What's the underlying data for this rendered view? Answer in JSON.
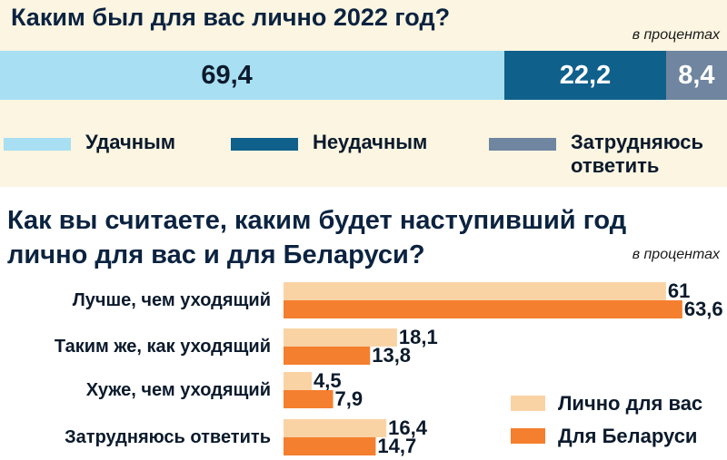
{
  "colors": {
    "background_top": "#fbf5e1",
    "successful": "#a8dff2",
    "unsuccessful": "#10608c",
    "hard_to_say": "#6f85a0",
    "personal": "#fad3a5",
    "belarus": "#f47f2f",
    "title": "#0b2340"
  },
  "section1": {
    "title": "Каким был для вас лично 2022 год?",
    "unit": "в процентах",
    "legend": [
      {
        "label": "Удачным",
        "color": "#a8dff2"
      },
      {
        "label": "Неудачным",
        "color": "#10608c"
      },
      {
        "label": "Затрудняюсь\nответить",
        "color": "#6f85a0"
      }
    ]
  },
  "section2": {
    "title": "Как вы считаете, каким будет наступивший год лично для вас и для Беларуси?",
    "unit": "в процентах"
  },
  "chart_data": [
    {
      "type": "bar",
      "stacked": true,
      "orientation": "horizontal",
      "title": "Каким был для вас лично 2022 год?",
      "series": [
        {
          "name": "Удачным",
          "values": [
            69.4
          ],
          "label": "69,4",
          "color": "#a8dff2"
        },
        {
          "name": "Неудачным",
          "values": [
            22.2
          ],
          "label": "22,2",
          "color": "#10608c"
        },
        {
          "name": "Затрудняюсь ответить",
          "values": [
            8.4
          ],
          "label": "8,4",
          "color": "#6f85a0"
        }
      ]
    },
    {
      "type": "bar",
      "orientation": "horizontal",
      "title": "Как вы считаете, каким будет наступивший год лично для вас и для Беларуси?",
      "categories": [
        "Лучше, чем уходящий",
        "Таким же, как уходящий",
        "Хуже, чем уходящий",
        "Затрудняюсь ответить"
      ],
      "series": [
        {
          "name": "Лично для вас",
          "values": [
            61,
            18.1,
            4.5,
            16.4
          ],
          "labels": [
            "61",
            "18,1",
            "4,5",
            "16,4"
          ],
          "color": "#fad3a5"
        },
        {
          "name": "Для Беларуси",
          "values": [
            63.6,
            13.8,
            7.9,
            14.7
          ],
          "labels": [
            "63,6",
            "13,8",
            "7,9",
            "14,7"
          ],
          "color": "#f47f2f"
        }
      ],
      "legend_position": "bottom-right"
    }
  ]
}
